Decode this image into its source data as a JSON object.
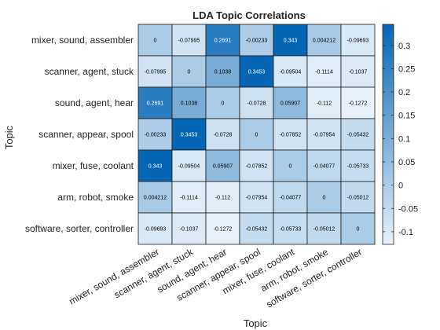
{
  "chart_data": {
    "type": "heatmap",
    "title": "LDA Topic Correlations",
    "xlabel": "Topic",
    "ylabel": "Topic",
    "categories": [
      "mixer, sound, assembler",
      "scanner, agent, stuck",
      "sound, agent, hear",
      "scanner, appear, spool",
      "mixer, fuse, coolant",
      "arm, robot, smoke",
      "software, sorter, controller"
    ],
    "values": [
      [
        0,
        -0.07995,
        0.2691,
        -0.00233,
        0.343,
        0.004212,
        -0.09693
      ],
      [
        -0.07995,
        0,
        0.1038,
        0.3453,
        -0.09504,
        -0.1114,
        -0.1037
      ],
      [
        0.2691,
        0.1038,
        0,
        -0.0728,
        0.05907,
        -0.112,
        -0.1272
      ],
      [
        -0.00233,
        0.3453,
        -0.0728,
        0,
        -0.07852,
        -0.07954,
        -0.05432
      ],
      [
        0.343,
        -0.09504,
        0.05907,
        -0.07852,
        0,
        -0.04077,
        -0.05733
      ],
      [
        0.004212,
        -0.1114,
        -0.112,
        -0.07954,
        -0.04077,
        0,
        -0.05012
      ],
      [
        -0.09693,
        -0.1037,
        -0.1272,
        -0.05432,
        -0.05733,
        -0.05012,
        0
      ]
    ],
    "labels": [
      [
        "0",
        "-0.07995",
        "0.2691",
        "-0.00233",
        "0.343",
        "0.004212",
        "-0.09693"
      ],
      [
        "-0.07995",
        "0",
        "0.1038",
        "0.3453",
        "-0.09504",
        "-0.1114",
        "-0.1037"
      ],
      [
        "0.2691",
        "0.1038",
        "0",
        "-0.0728",
        "0.05907",
        "-0.112",
        "-0.1272"
      ],
      [
        "-0.00233",
        "0.3453",
        "-0.0728",
        "0",
        "-0.07852",
        "-0.07954",
        "-0.05432"
      ],
      [
        "0.343",
        "-0.09504",
        "0.05907",
        "-0.07852",
        "0",
        "-0.04077",
        "-0.05733"
      ],
      [
        "0.004212",
        "-0.1114",
        "-0.112",
        "-0.07954",
        "-0.04077",
        "0",
        "-0.05012"
      ],
      [
        "-0.09693",
        "-0.1037",
        "-0.1272",
        "-0.05432",
        "-0.05733",
        "-0.05012",
        "0"
      ]
    ],
    "colorbar": {
      "range": [
        -0.1272,
        0.3453
      ],
      "ticks": [
        -0.1,
        -0.05,
        0,
        0.05,
        0.1,
        0.15,
        0.2,
        0.25,
        0.3
      ],
      "tick_labels": [
        "-0.1",
        "-0.05",
        "0",
        "0.05",
        "0.1",
        "0.15",
        "0.2",
        "0.25",
        "0.3"
      ],
      "color_low": "#e8f1f9",
      "color_high": "#0466b4",
      "position": "right"
    },
    "grid": true
  }
}
